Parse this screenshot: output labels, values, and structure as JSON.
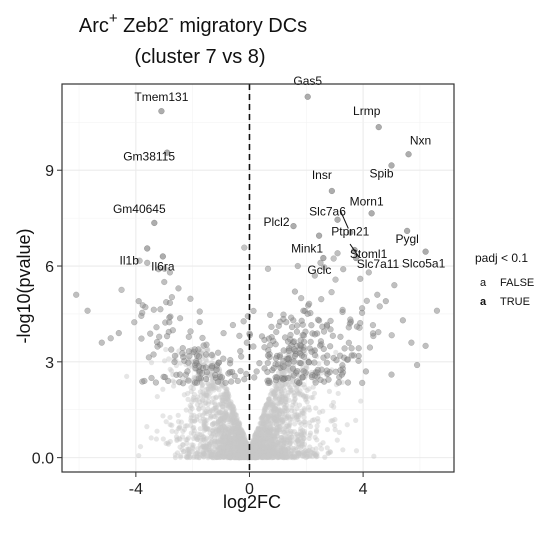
{
  "chart_data": {
    "type": "scatter",
    "title": {
      "base1": "Arc",
      "sup1": "+",
      "base2": " Zeb2",
      "sup2": "-",
      "rest": " migratory DCs",
      "line2": "(cluster 7 vs 8)"
    },
    "xlabel": "log2FC",
    "ylabel": "-log10(pvalue)",
    "xlim": [
      -6.6,
      7.2
    ],
    "ylim": [
      -0.45,
      11.7
    ],
    "x_ticks": [
      -4,
      0,
      4
    ],
    "y_ticks": [
      0,
      3,
      6,
      9
    ],
    "x_tick_labels": [
      "-4",
      "0",
      "4"
    ],
    "y_tick_labels": [
      "0.0",
      "3",
      "6",
      "9"
    ],
    "vline": 0,
    "grid": true,
    "colors": {
      "false_point": "#c8c8c8",
      "true_point": "#8a8a8a",
      "panel_border": "#333333",
      "grid": "#ebebeb"
    },
    "legend": {
      "title": "padj < 0.1",
      "position": "right",
      "entries": [
        {
          "key": "a",
          "label": "FALSE"
        },
        {
          "key": "a",
          "label": "TRUE"
        }
      ]
    },
    "labeled_points": [
      {
        "label": "Gas5",
        "x": 2.05,
        "y": 11.3
      },
      {
        "label": "Tmem131",
        "x": -3.1,
        "y": 10.85
      },
      {
        "label": "Lrmp",
        "x": 4.55,
        "y": 10.35
      },
      {
        "label": "Nxn",
        "x": 5.6,
        "y": 9.5
      },
      {
        "label": "Gm38115",
        "x": -2.9,
        "y": 9.55
      },
      {
        "label": "Spib",
        "x": 5.0,
        "y": 9.15
      },
      {
        "label": "Insr",
        "x": 2.9,
        "y": 8.35
      },
      {
        "label": "Morn1",
        "x": 4.3,
        "y": 7.65
      },
      {
        "label": "Slc7a6",
        "x": 3.1,
        "y": 7.45
      },
      {
        "label": "Gm40645",
        "x": -3.35,
        "y": 7.35
      },
      {
        "label": "Plcl2",
        "x": 1.55,
        "y": 7.25
      },
      {
        "label": "Pygl",
        "x": 5.55,
        "y": 7.1
      },
      {
        "label": "Ptpn21",
        "x": 3.55,
        "y": 7.05
      },
      {
        "label": "Mink1",
        "x": 2.45,
        "y": 6.95
      },
      {
        "label": "Il1b",
        "x": -3.6,
        "y": 6.55
      },
      {
        "label": "Stoml1",
        "x": 3.7,
        "y": 6.5
      },
      {
        "label": "Il6ra",
        "x": -3.05,
        "y": 6.3
      },
      {
        "label": "Gclc",
        "x": 2.6,
        "y": 6.25
      },
      {
        "label": "Slc7a11",
        "x": 3.75,
        "y": 6.25
      },
      {
        "label": "Slco5a1",
        "x": 6.2,
        "y": 6.45
      }
    ]
  }
}
